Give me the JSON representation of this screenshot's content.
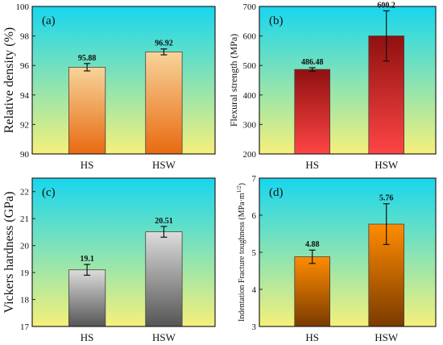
{
  "colors": {
    "bg_top": "#17d6ef",
    "bg_bottom": "#f6f07a",
    "axis": "#222222"
  },
  "chart_data": [
    {
      "panel": "(a)",
      "type": "bar",
      "categories": [
        "HS",
        "HSW"
      ],
      "values": [
        95.88,
        96.92
      ],
      "errors": [
        0.25,
        0.2
      ],
      "value_labels": [
        "95.88",
        "96.92"
      ],
      "ylabel": "Relative density (%)",
      "ylim": [
        90,
        100
      ],
      "yticks": [
        90,
        92,
        94,
        96,
        98,
        100
      ],
      "bar_top_color": "#f7d49a",
      "bar_bottom_color": "#e86a10"
    },
    {
      "panel": "(b)",
      "type": "bar",
      "categories": [
        "HS",
        "HSW"
      ],
      "values": [
        486.48,
        600.2
      ],
      "errors": [
        6,
        85
      ],
      "value_labels": [
        "486.48",
        "600.2"
      ],
      "ylabel": "Flexural strength (MPa)",
      "ylim": [
        200,
        700
      ],
      "yticks": [
        200,
        300,
        400,
        500,
        600,
        700
      ],
      "bar_top_color": "#8f1010",
      "bar_bottom_color": "#ff4545"
    },
    {
      "panel": "(c)",
      "type": "bar",
      "categories": [
        "HS",
        "HSW"
      ],
      "values": [
        19.1,
        20.51
      ],
      "errors": [
        0.2,
        0.2
      ],
      "value_labels": [
        "19.1",
        "20.51"
      ],
      "ylabel": "Vickers hardness (GPa)",
      "ylim": [
        17,
        22.5
      ],
      "yticks": [
        17,
        18,
        19,
        20,
        21,
        22
      ],
      "bar_top_color": "#dcdcdc",
      "bar_bottom_color": "#555555"
    },
    {
      "panel": "(d)",
      "type": "bar",
      "categories": [
        "HS",
        "HSW"
      ],
      "values": [
        4.88,
        5.76
      ],
      "errors": [
        0.18,
        0.55
      ],
      "value_labels": [
        "4.88",
        "5.76"
      ],
      "ylabel": "Indentation Fracture toughness (MPa·m",
      "ylabel_sup": "1/2",
      "ylabel_end": ")",
      "ylim": [
        3,
        7
      ],
      "yticks": [
        3,
        4,
        5,
        6,
        7
      ],
      "bar_top_color": "#ff8c00",
      "bar_bottom_color": "#7a3a00"
    }
  ]
}
